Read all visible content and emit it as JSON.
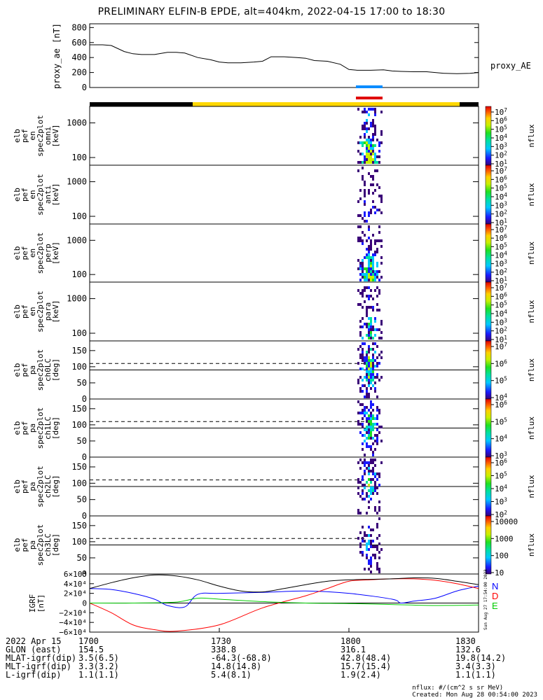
{
  "title": "PRELIMINARY ELFIN-B EPDE, alt=404km, 2022-04-15 17:00 to 18:30",
  "proxy_ae": {
    "ylabel": "proxy_ae [nT]",
    "series_label": "proxy_AE",
    "ticks": [
      "800",
      "600",
      "400",
      "200",
      "0"
    ]
  },
  "panels": [
    {
      "ylabel": [
        "elb",
        "pef",
        "en",
        "spec2plot",
        "omni",
        "[keV]"
      ],
      "ticks": [
        "1000",
        "100"
      ],
      "cbar_ticks": [
        "10^7",
        "10^6",
        "10^5",
        "10^4",
        "10^3",
        "10^2",
        "10^1"
      ],
      "cbar_label": "nflux"
    },
    {
      "ylabel": [
        "elb",
        "pef",
        "en",
        "spec2plot",
        "anti",
        "[keV]"
      ],
      "ticks": [
        "1000",
        "100"
      ],
      "cbar_ticks": [
        "10^7",
        "10^6",
        "10^5",
        "10^4",
        "10^3",
        "10^2",
        "10^1"
      ],
      "cbar_label": "nflux"
    },
    {
      "ylabel": [
        "elb",
        "pef",
        "en",
        "spec2plot",
        "perp",
        "[keV]"
      ],
      "ticks": [
        "1000",
        "100"
      ],
      "cbar_ticks": [
        "10^7",
        "10^6",
        "10^5",
        "10^4",
        "10^3",
        "10^2",
        "10^1"
      ],
      "cbar_label": "nflux"
    },
    {
      "ylabel": [
        "elb",
        "pef",
        "en",
        "spec2plot",
        "para",
        "[keV]"
      ],
      "ticks": [
        "1000",
        "100"
      ],
      "cbar_ticks": [
        "10^7",
        "10^6",
        "10^5",
        "10^4",
        "10^3",
        "10^2",
        "10^1"
      ],
      "cbar_label": "nflux"
    },
    {
      "ylabel": [
        "elb",
        "pef",
        "pa",
        "spec2plot",
        "ch0LC",
        "[deg]"
      ],
      "ticks": [
        "150",
        "100",
        "50",
        "0"
      ],
      "cbar_ticks": [
        "10^7",
        "10^6",
        "10^5",
        "10^4"
      ],
      "cbar_label": "nflux"
    },
    {
      "ylabel": [
        "elb",
        "pef",
        "pa",
        "spec2plot",
        "ch1LC",
        "[deg]"
      ],
      "ticks": [
        "150",
        "100",
        "50",
        "0"
      ],
      "cbar_ticks": [
        "10^6",
        "10^5",
        "10^4",
        "10^3"
      ],
      "cbar_label": "nflux"
    },
    {
      "ylabel": [
        "elb",
        "pef",
        "pa",
        "spec2plot",
        "ch2LC",
        "[deg]"
      ],
      "ticks": [
        "150",
        "100",
        "50",
        "0"
      ],
      "cbar_ticks": [
        "10^6",
        "10^5",
        "10^4",
        "10^3",
        "10^2"
      ],
      "cbar_label": "nflux"
    },
    {
      "ylabel": [
        "elb",
        "pef",
        "pa",
        "spec2plot",
        "ch3LC",
        "[deg]"
      ],
      "ticks": [
        "150",
        "100",
        "50",
        "0"
      ],
      "cbar_ticks": [
        "10000",
        "1000",
        "100",
        "10"
      ],
      "cbar_label": "nflux"
    }
  ],
  "igrf": {
    "ylabel": [
      "IGRF",
      "[nT]"
    ],
    "ticks": [
      "6×10⁴",
      "4×10⁴",
      "2×10⁴",
      "0",
      "−2×10⁴",
      "−4×10⁴",
      "−6×10⁴"
    ],
    "legend": [
      {
        "label": "N",
        "color": "#0000ff"
      },
      {
        "label": "D",
        "color": "#ff0000"
      },
      {
        "label": "E",
        "color": "#00cc00"
      }
    ],
    "stamp": "Sun Aug 27 17:54:00 2023"
  },
  "footer": {
    "rows": [
      {
        "label": "2022 Apr 15",
        "values": [
          "1700",
          "1730",
          "1800",
          "1830"
        ]
      },
      {
        "label": "GLON (east)",
        "values": [
          "154.5",
          "338.8",
          "316.1",
          "132.6"
        ]
      },
      {
        "label": "MLAT-igrf(dip)",
        "values": [
          "3.5(6.5)",
          "-64.3(-68.8)",
          "42.8(48.4)",
          "19.8(14.2)"
        ]
      },
      {
        "label": "MLT-igrf(dip)",
        "values": [
          "3.3(3.2)",
          "14.8(14.8)",
          "15.7(15.4)",
          "3.4(3.3)"
        ]
      },
      {
        "label": "L-igrf(dip)",
        "values": [
          "1.1(1.1)",
          "5.4(8.1)",
          "1.9(2.4)",
          "1.1(1.1)"
        ]
      }
    ],
    "units": "nflux: #/(cm^2 s sr MeV)",
    "created": "Created: Mon Aug 28 00:54:00 2023"
  },
  "chart_data": {
    "type": "line",
    "title": "PRELIMINARY ELFIN-B EPDE, alt=404km, 2022-04-15 17:00 to 18:30",
    "x_range": [
      "17:00",
      "18:30"
    ],
    "x_ticks": [
      "1700",
      "1730",
      "1800",
      "1830"
    ],
    "proxy_ae": {
      "x_min": [
        0,
        3,
        5,
        8,
        10,
        12,
        15,
        18,
        20,
        22,
        25,
        28,
        30,
        32,
        35,
        38,
        40,
        42,
        45,
        48,
        50,
        52,
        55,
        58,
        60,
        62,
        65,
        68,
        70,
        72,
        75,
        78,
        80,
        82,
        85,
        88,
        90
      ],
      "values": [
        570,
        570,
        560,
        480,
        450,
        440,
        440,
        470,
        470,
        460,
        400,
        370,
        340,
        330,
        330,
        340,
        350,
        410,
        410,
        400,
        390,
        360,
        350,
        310,
        240,
        230,
        230,
        235,
        220,
        215,
        210,
        210,
        200,
        190,
        185,
        190,
        200
      ],
      "ylim": [
        0,
        850
      ]
    },
    "activity_window_min": [
      64,
      69
    ],
    "energy_ylim_keV": [
      60,
      3000
    ],
    "pa_ylim_deg": [
      0,
      180
    ],
    "pa_dashed_line_deg": 110,
    "pa_solid_line_deg": 90,
    "igrf": {
      "ylim": [
        -60000,
        60000
      ],
      "series": [
        {
          "name": "N",
          "color": "#0000ff",
          "x_min": [
            0,
            5,
            10,
            15,
            18,
            22,
            25,
            30,
            40,
            50,
            60,
            70,
            72,
            75,
            80,
            85,
            90
          ],
          "values": [
            30000,
            28000,
            20000,
            8000,
            -5000,
            -8000,
            18000,
            20000,
            22000,
            25000,
            20000,
            8000,
            0,
            4000,
            10000,
            25000,
            35000
          ]
        },
        {
          "name": "D",
          "color": "#ff0000",
          "x_min": [
            0,
            5,
            10,
            15,
            20,
            30,
            40,
            50,
            55,
            60,
            65,
            70,
            75,
            80,
            85,
            90
          ],
          "values": [
            0,
            -20000,
            -45000,
            -55000,
            -58000,
            -45000,
            -10000,
            15000,
            30000,
            45000,
            48000,
            50000,
            50000,
            47000,
            40000,
            30000
          ]
        },
        {
          "name": "E",
          "color": "#00cc00",
          "x_min": [
            0,
            10,
            20,
            25,
            30,
            40,
            50,
            60,
            70,
            80,
            90
          ],
          "values": [
            0,
            0,
            2000,
            10000,
            8000,
            3000,
            0,
            -1000,
            -3000,
            -5000,
            -4000
          ]
        },
        {
          "name": "total",
          "color": "#000000",
          "x_min": [
            0,
            5,
            10,
            15,
            20,
            25,
            30,
            35,
            40,
            45,
            50,
            55,
            60,
            65,
            70,
            75,
            80,
            85,
            90
          ],
          "values": [
            30000,
            42000,
            52000,
            58000,
            56000,
            48000,
            35000,
            25000,
            23000,
            30000,
            38000,
            45000,
            48000,
            49000,
            50000,
            52000,
            51000,
            45000,
            38000
          ]
        }
      ]
    }
  }
}
